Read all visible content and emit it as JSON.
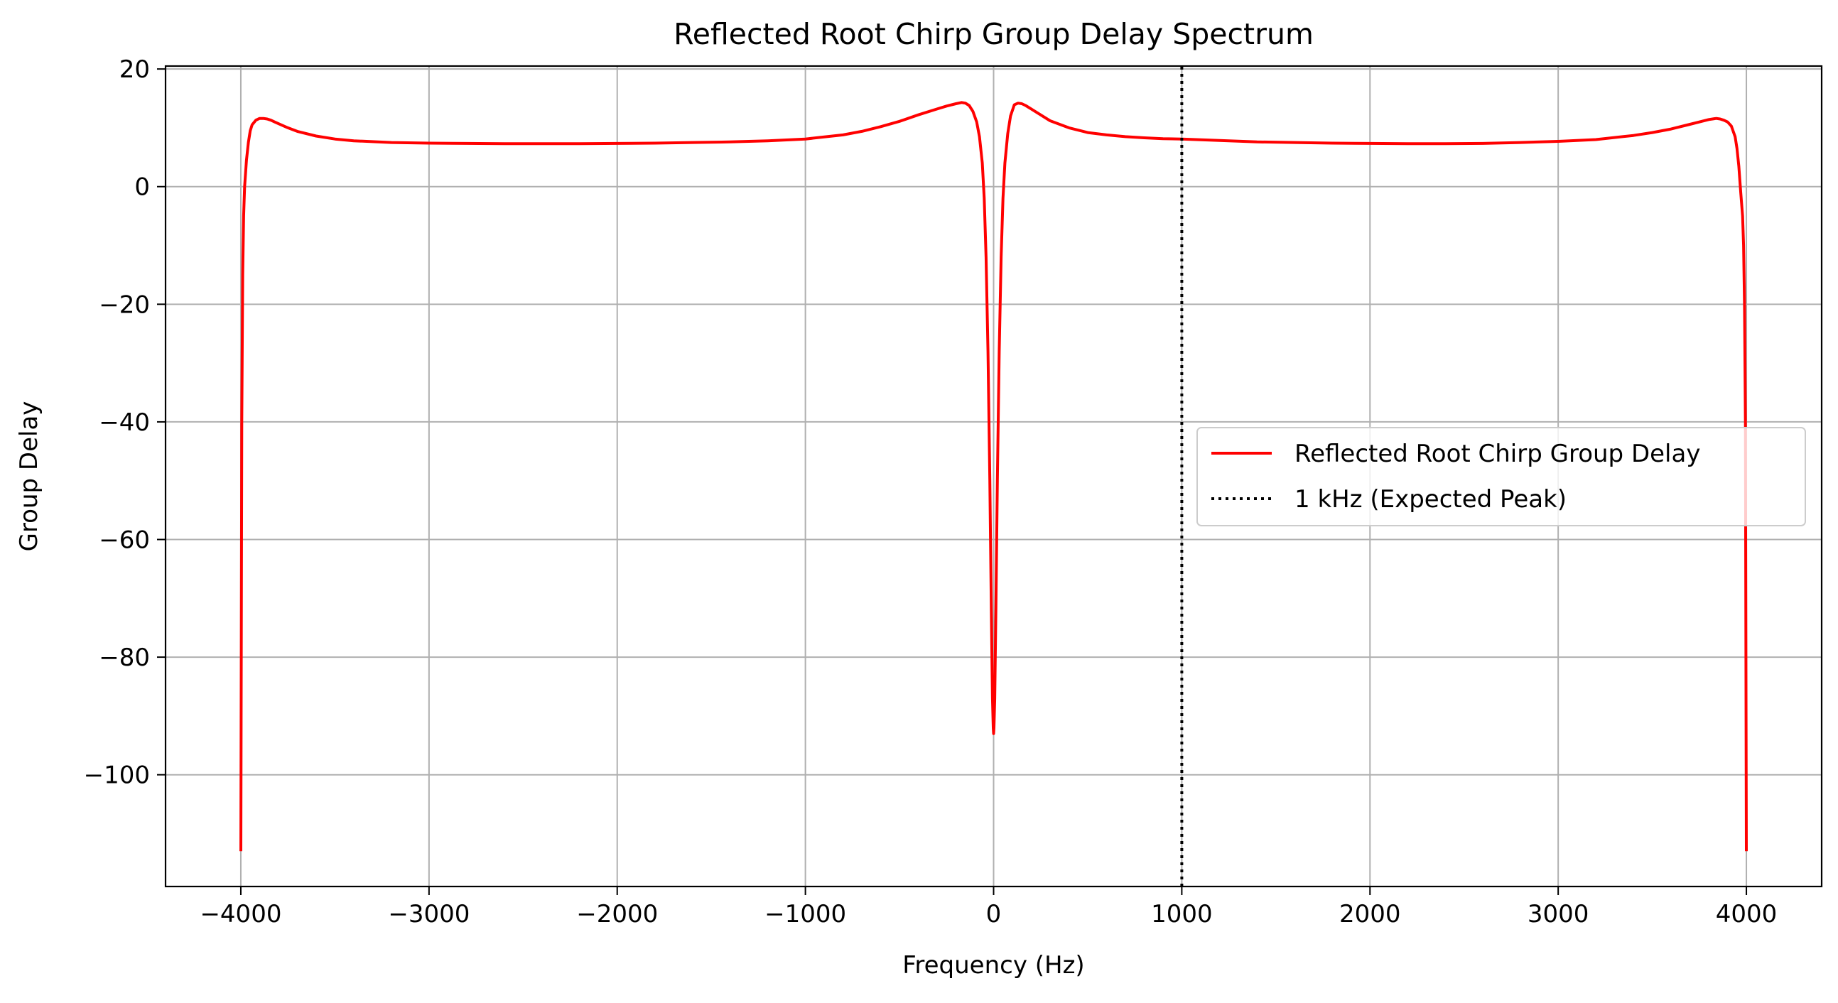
{
  "chart_data": {
    "type": "line",
    "title": "Reflected Root Chirp Group Delay Spectrum",
    "xlabel": "Frequency (Hz)",
    "ylabel": "Group Delay",
    "xlim": [
      -4400,
      4400
    ],
    "ylim": [
      -119,
      20.5
    ],
    "xticks": [
      -4000,
      -3000,
      -2000,
      -1000,
      0,
      1000,
      2000,
      3000,
      4000
    ],
    "xtick_labels": [
      "−4000",
      "−3000",
      "−2000",
      "−1000",
      "0",
      "1000",
      "2000",
      "3000",
      "4000"
    ],
    "yticks": [
      20,
      0,
      -20,
      -40,
      -60,
      -80,
      -100
    ],
    "ytick_labels": [
      "20",
      "0",
      "−20",
      "−40",
      "−60",
      "−80",
      "−100"
    ],
    "grid": true,
    "legend_position": "center-right",
    "series": [
      {
        "name": "Reflected Root Chirp Group Delay",
        "color": "#ff0000",
        "style": "solid",
        "x": [
          -4000,
          -3995,
          -3990,
          -3985,
          -3980,
          -3970,
          -3960,
          -3950,
          -3940,
          -3920,
          -3900,
          -3880,
          -3860,
          -3840,
          -3820,
          -3800,
          -3750,
          -3700,
          -3600,
          -3500,
          -3400,
          -3200,
          -3000,
          -2800,
          -2600,
          -2400,
          -2200,
          -2000,
          -1800,
          -1600,
          -1400,
          -1200,
          -1000,
          -800,
          -700,
          -600,
          -500,
          -400,
          -300,
          -250,
          -200,
          -170,
          -150,
          -130,
          -110,
          -90,
          -75,
          -60,
          -50,
          -40,
          -30,
          -20,
          -12,
          -6,
          -2,
          0,
          2,
          6,
          12,
          20,
          30,
          40,
          50,
          60,
          75,
          90,
          110,
          130,
          150,
          170,
          200,
          250,
          300,
          400,
          500,
          600,
          700,
          800,
          900,
          1000,
          1200,
          1400,
          1600,
          1800,
          2000,
          2200,
          2400,
          2600,
          2800,
          3000,
          3200,
          3400,
          3500,
          3600,
          3700,
          3750,
          3800,
          3820,
          3840,
          3860,
          3880,
          3900,
          3920,
          3940,
          3950,
          3960,
          3970,
          3980,
          3985,
          3990,
          3995,
          4000
        ],
        "y": [
          -113,
          -40,
          -15,
          -5,
          0,
          4.5,
          7.5,
          9.5,
          10.5,
          11.3,
          11.6,
          11.6,
          11.5,
          11.3,
          11.0,
          10.7,
          10.0,
          9.4,
          8.6,
          8.1,
          7.8,
          7.5,
          7.4,
          7.35,
          7.3,
          7.3,
          7.3,
          7.35,
          7.4,
          7.5,
          7.6,
          7.8,
          8.1,
          8.8,
          9.4,
          10.2,
          11.1,
          12.2,
          13.2,
          13.7,
          14.1,
          14.3,
          14.2,
          13.8,
          12.8,
          11.0,
          8.5,
          4.0,
          -2.0,
          -12,
          -28,
          -50,
          -72,
          -87,
          -92,
          -93,
          -92,
          -87,
          -72,
          -50,
          -28,
          -12,
          -2.0,
          4.0,
          9.0,
          12.0,
          13.9,
          14.2,
          14.1,
          13.8,
          13.2,
          12.2,
          11.2,
          10.0,
          9.2,
          8.8,
          8.5,
          8.3,
          8.15,
          8.1,
          7.85,
          7.6,
          7.5,
          7.4,
          7.35,
          7.3,
          7.3,
          7.35,
          7.5,
          7.7,
          8.0,
          8.7,
          9.2,
          9.8,
          10.6,
          11.0,
          11.4,
          11.5,
          11.6,
          11.5,
          11.3,
          11.0,
          10.3,
          8.5,
          6.5,
          3.5,
          -1,
          -5,
          -10,
          -20,
          -40,
          -113
        ]
      },
      {
        "name": "1 kHz (Expected Peak)",
        "color": "#000000",
        "style": "dotted",
        "x": [
          1000,
          1000
        ],
        "y": [
          -119,
          20.5
        ]
      }
    ]
  }
}
